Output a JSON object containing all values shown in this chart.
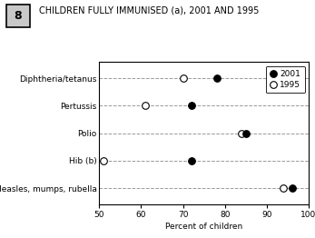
{
  "title": "CHILDREN FULLY IMMUNISED (a), 2001 AND 1995",
  "graph_number": "8",
  "categories": [
    "Diphtheria/tetanus",
    "Pertussis",
    "Polio",
    "Hib (b)",
    "Measles, mumps, rubella"
  ],
  "values_2001": [
    78,
    72,
    85,
    72,
    96
  ],
  "values_1995": [
    70,
    61,
    84,
    51,
    94
  ],
  "xlabel": "Percent of children",
  "xlim": [
    50,
    100
  ],
  "xticks": [
    50,
    60,
    70,
    80,
    90,
    100
  ],
  "color_2001": "#000000",
  "color_1995": "#ffffff",
  "marker_edge_color": "#000000",
  "marker_size": 5.5,
  "dashed_color": "#999999",
  "legend_label_2001": "2001",
  "legend_label_1995": "1995",
  "background_color": "#ffffff",
  "title_fontsize": 7,
  "axis_fontsize": 6.5,
  "tick_fontsize": 6.5,
  "legend_fontsize": 6.5,
  "number_box_bg": "#c8c8c8"
}
